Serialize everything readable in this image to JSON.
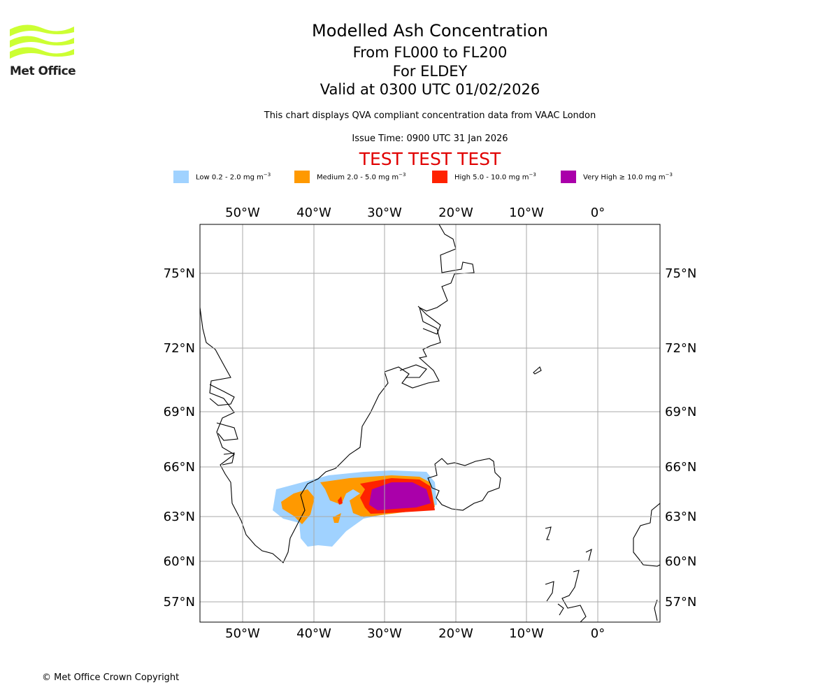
{
  "logo": {
    "text": "Met Office",
    "color": "#ccff33"
  },
  "title": "Modelled Ash Concentration",
  "subtitle_levels": "From FL000 to FL200",
  "subtitle_location": "For ELDEY",
  "subtitle_valid": "Valid at 0300 UTC 01/02/2026",
  "description": "This chart displays QVA compliant concentration data from VAAC London",
  "issue_time": "Issue Time: 0900 UTC 31 Jan 2026",
  "test_banner": "TEST TEST TEST",
  "legend": [
    {
      "label": "Low 0.2 - 2.0 mg m",
      "unit_exp": "−3",
      "color": "#a0d2ff"
    },
    {
      "label": "Medium 2.0 - 5.0 mg m",
      "unit_exp": "−3",
      "color": "#ff9900"
    },
    {
      "label": "High 5.0 - 10.0 mg m",
      "unit_exp": "−3",
      "color": "#ff2200"
    },
    {
      "label": "Very High ≥ 10.0 mg m",
      "unit_exp": "−3",
      "color": "#aa00aa"
    }
  ],
  "map": {
    "lon_ticks": [
      "50°W",
      "40°W",
      "30°W",
      "20°W",
      "10°W",
      "0°"
    ],
    "lat_ticks": [
      "75°N",
      "72°N",
      "69°N",
      "66°N",
      "63°N",
      "60°N",
      "57°N"
    ],
    "grid_color": "#aaaaaa"
  },
  "copyright": "© Met Office Crown Copyright"
}
